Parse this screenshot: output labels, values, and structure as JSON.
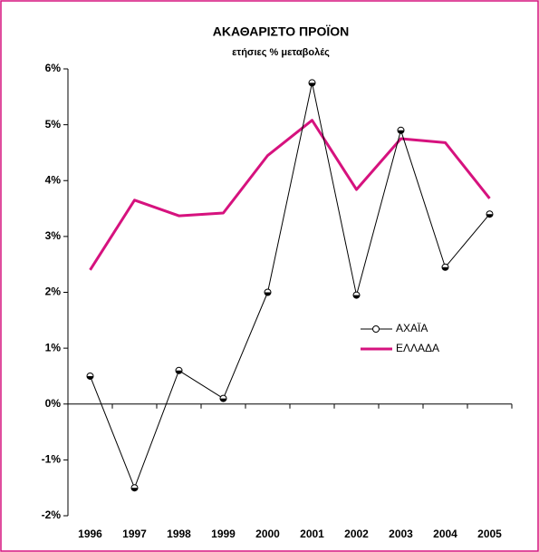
{
  "chart_data": {
    "type": "line",
    "title": "ΑΚΑΘΑΡΙΣΤΟ ΠΡΟΪΟΝ",
    "subtitle": "ετήσιες % μεταβολές",
    "categories": [
      "1996",
      "1997",
      "1998",
      "1999",
      "2000",
      "2001",
      "2002",
      "2003",
      "2004",
      "2005"
    ],
    "series": [
      {
        "name": "ΑΧΑΪΑ",
        "color": "#000000",
        "markers": true,
        "values": [
          0.5,
          -1.5,
          0.6,
          0.1,
          2.0,
          5.75,
          1.95,
          4.9,
          2.45,
          3.4
        ]
      },
      {
        "name": "ΕΛΛΑΔΑ",
        "color": "#d6127e",
        "markers": false,
        "values": [
          2.4,
          3.65,
          3.37,
          3.42,
          4.45,
          5.08,
          3.84,
          4.75,
          4.68,
          3.68
        ]
      }
    ],
    "ylim": [
      -2,
      6
    ],
    "yticks": [
      {
        "value": -2,
        "label": "-2%"
      },
      {
        "value": -1,
        "label": "-1%"
      },
      {
        "value": 0,
        "label": "0%"
      },
      {
        "value": 1,
        "label": "1%"
      },
      {
        "value": 2,
        "label": "2%"
      },
      {
        "value": 3,
        "label": "3%"
      },
      {
        "value": 4,
        "label": "4%"
      },
      {
        "value": 5,
        "label": "5%"
      },
      {
        "value": 6,
        "label": "6%"
      }
    ],
    "grid": false,
    "legend": "center-right"
  }
}
